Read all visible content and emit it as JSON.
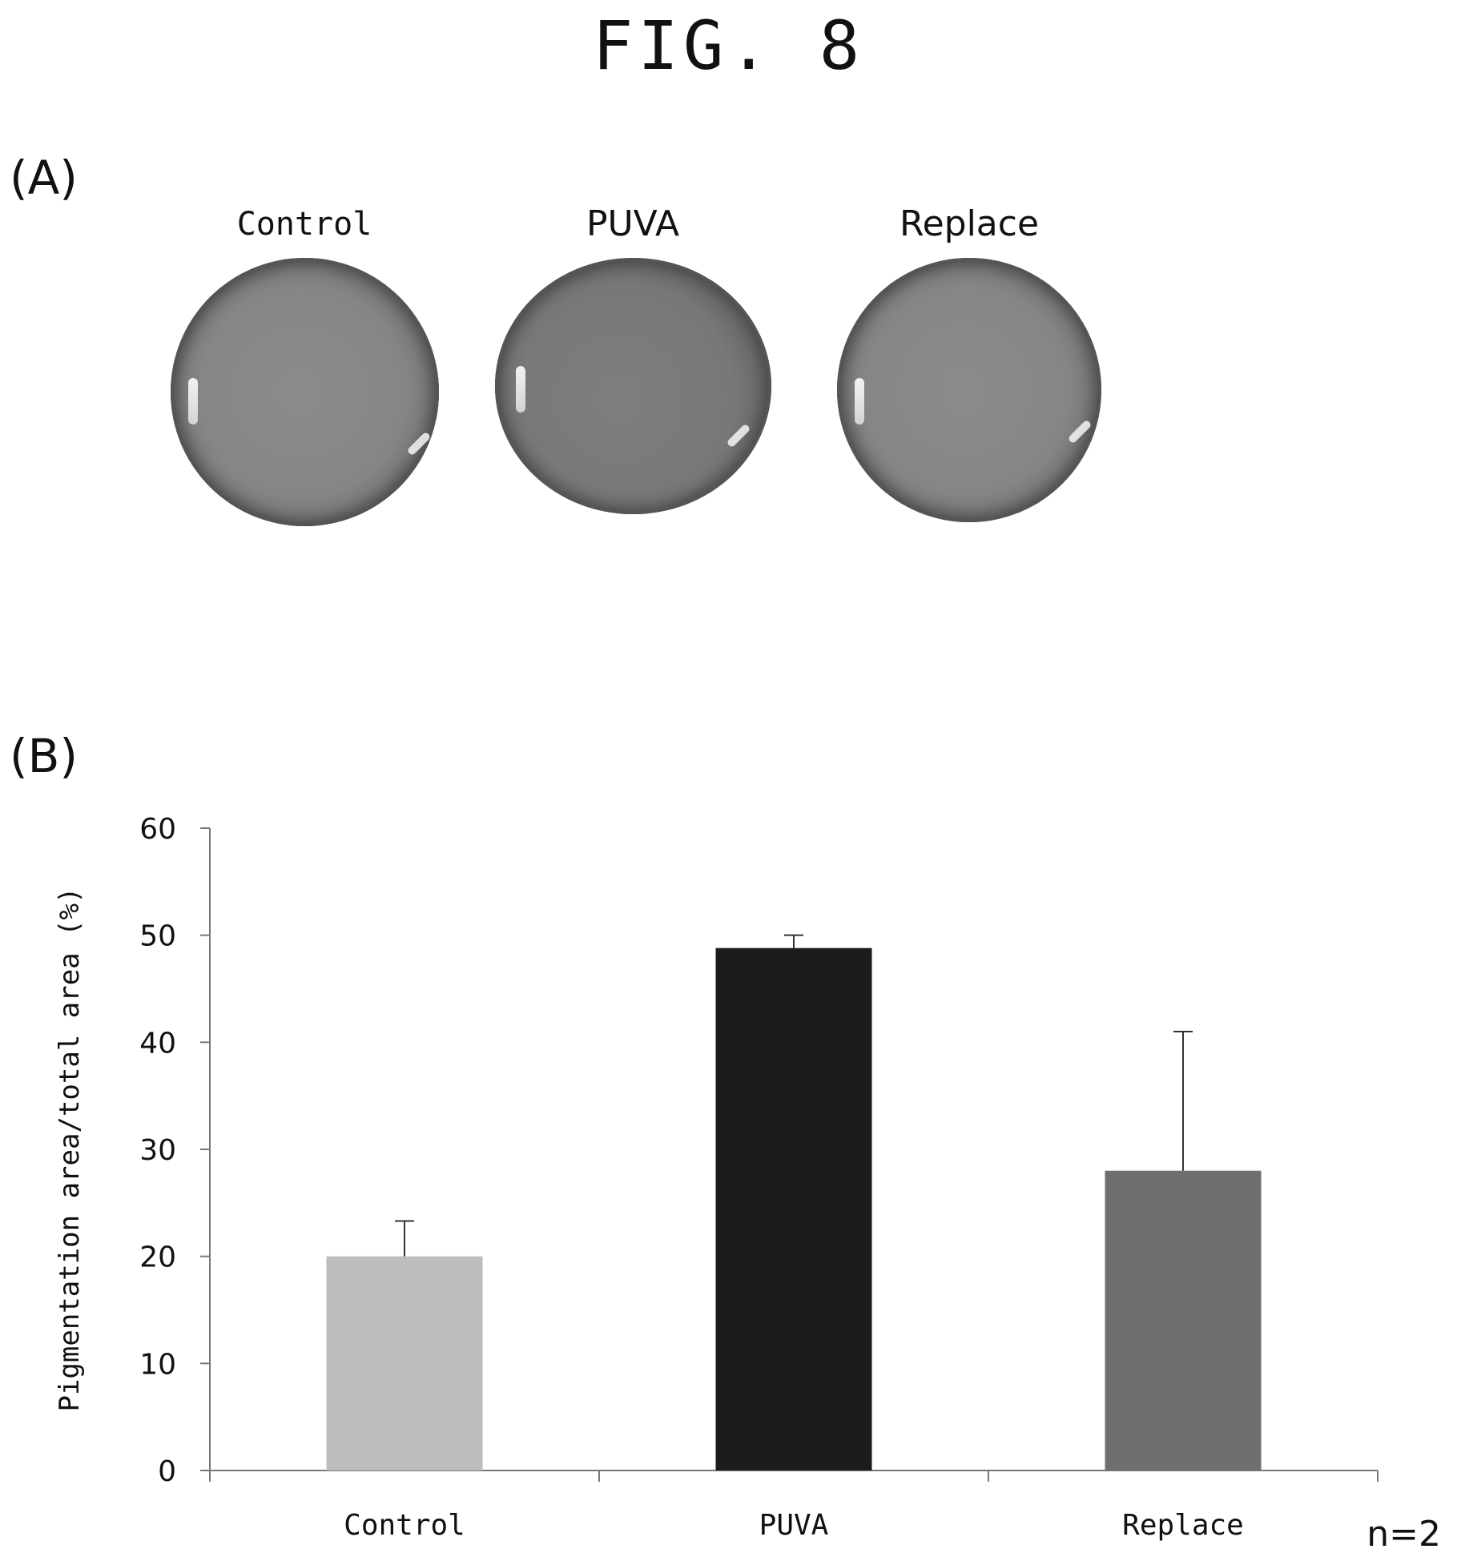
{
  "figure": {
    "title": "FIG. 8",
    "panel_a_label": "(A)",
    "panel_b_label": "(B)"
  },
  "panel_a": {
    "dishes": [
      {
        "label": "Control",
        "shade": "#8a8a8a"
      },
      {
        "label": "PUVA",
        "shade": "#7d7d7d"
      },
      {
        "label": "Replace",
        "shade": "#8a8a8a"
      }
    ]
  },
  "chart_data": {
    "type": "bar",
    "categories": [
      "Control",
      "PUVA",
      "Replace"
    ],
    "values": [
      20,
      48.8,
      28
    ],
    "errors": [
      3.3,
      1.2,
      13
    ],
    "colors": [
      "#bdbdbd",
      "#1c1c1c",
      "#6f6f6f"
    ],
    "ylabel": "Pigmentation area/total area (%)",
    "xlabel": "",
    "ylim": [
      0,
      60
    ],
    "yticks": [
      0,
      10,
      20,
      30,
      40,
      50,
      60
    ],
    "grid": false,
    "note": "n=2"
  }
}
